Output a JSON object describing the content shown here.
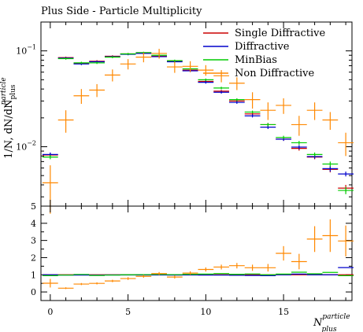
{
  "chart_data": [
    {
      "type": "scatter",
      "panel": "main",
      "title": "Plus Side - Particle Multiplicity",
      "ylabel": "1/N, dN/dN",
      "ylabel_sup": "particle",
      "ylabel_sub": "plus",
      "yscale": "log",
      "ylim": [
        0.0024,
        0.2
      ],
      "xlim": [
        -0.6,
        19.4
      ],
      "yticks": [
        {
          "value": 0.1,
          "base": "10",
          "exp": "−1"
        },
        {
          "value": 0.01,
          "base": "10",
          "exp": "−2"
        }
      ],
      "legend_position": "top-right",
      "series": [
        {
          "name": "Single Diffractive",
          "color": "#cc0000",
          "x": [
            0,
            1,
            2,
            3,
            4,
            5,
            6,
            7,
            8,
            9,
            10,
            11,
            12,
            13,
            14,
            15,
            16,
            17,
            18,
            19
          ],
          "y": [
            0.0082,
            0.085,
            0.074,
            0.078,
            0.088,
            0.093,
            0.095,
            0.088,
            0.078,
            0.063,
            0.048,
            0.038,
            0.03,
            0.022,
            0.017,
            0.012,
            0.0096,
            0.0078,
            0.0058,
            0.0037
          ],
          "err": [
            0.0004,
            0.002,
            0.002,
            0.002,
            0.002,
            0.002,
            0.002,
            0.002,
            0.002,
            0.002,
            0.0015,
            0.0012,
            0.001,
            0.0008,
            0.0007,
            0.0005,
            0.0005,
            0.0004,
            0.0004,
            0.0003
          ]
        },
        {
          "name": "Diffractive",
          "color": "#0000cc",
          "x": [
            0,
            1,
            2,
            3,
            4,
            5,
            6,
            7,
            8,
            9,
            10,
            11,
            12,
            13,
            14,
            15,
            16,
            17,
            18,
            19
          ],
          "y": [
            0.0083,
            0.084,
            0.073,
            0.077,
            0.087,
            0.092,
            0.094,
            0.087,
            0.077,
            0.062,
            0.047,
            0.037,
            0.029,
            0.021,
            0.016,
            0.012,
            0.0099,
            0.0079,
            0.0059,
            0.0052
          ],
          "err": [
            0.0004,
            0.002,
            0.002,
            0.002,
            0.002,
            0.002,
            0.002,
            0.002,
            0.002,
            0.002,
            0.0015,
            0.0012,
            0.001,
            0.0008,
            0.0007,
            0.0005,
            0.0005,
            0.0004,
            0.0004,
            0.0003
          ]
        },
        {
          "name": "MinBias",
          "color": "#00cc00",
          "x": [
            0,
            1,
            2,
            3,
            4,
            5,
            6,
            7,
            8,
            9,
            10,
            11,
            12,
            13,
            14,
            15,
            16,
            17,
            18,
            19
          ],
          "y": [
            0.0078,
            0.083,
            0.075,
            0.075,
            0.086,
            0.093,
            0.096,
            0.09,
            0.079,
            0.065,
            0.05,
            0.041,
            0.031,
            0.023,
            0.017,
            0.0125,
            0.011,
            0.0083,
            0.0066,
            0.0035
          ],
          "err": [
            0.0004,
            0.002,
            0.002,
            0.002,
            0.002,
            0.002,
            0.002,
            0.002,
            0.002,
            0.002,
            0.0015,
            0.0012,
            0.001,
            0.0008,
            0.0007,
            0.0005,
            0.0005,
            0.0004,
            0.0004,
            0.0003
          ]
        },
        {
          "name": "Non Diffractive",
          "color": "#ff8800",
          "x": [
            0,
            1,
            2,
            3,
            4,
            5,
            6,
            7,
            8,
            9,
            10,
            11,
            12,
            13,
            14,
            15,
            16,
            17,
            18,
            19
          ],
          "y": [
            0.0042,
            0.019,
            0.034,
            0.039,
            0.056,
            0.073,
            0.086,
            0.094,
            0.068,
            0.069,
            0.063,
            0.055,
            0.046,
            0.031,
            0.024,
            0.027,
            0.017,
            0.024,
            0.019,
            0.011
          ],
          "err": [
            0.0022,
            0.005,
            0.006,
            0.006,
            0.008,
            0.009,
            0.01,
            0.011,
            0.009,
            0.009,
            0.008,
            0.008,
            0.007,
            0.006,
            0.005,
            0.005,
            0.004,
            0.005,
            0.004,
            0.003
          ]
        }
      ]
    },
    {
      "type": "scatter",
      "panel": "ratio",
      "ylim": [
        -0.5,
        5
      ],
      "xlim": [
        -0.6,
        19.4
      ],
      "xlabel": "N",
      "xlabel_sup": "particle",
      "xlabel_sub": "plus",
      "xticks": [
        {
          "value": 0,
          "label": "0"
        },
        {
          "value": 5,
          "label": "5"
        },
        {
          "value": 10,
          "label": "10"
        },
        {
          "value": 15,
          "label": "15"
        }
      ],
      "yticks": [
        {
          "value": 0,
          "label": "0"
        },
        {
          "value": 1,
          "label": "1"
        },
        {
          "value": 2,
          "label": "2"
        },
        {
          "value": 3,
          "label": "3"
        },
        {
          "value": 4,
          "label": "4"
        },
        {
          "value": 5,
          "label": "5"
        }
      ],
      "series": [
        {
          "name": "Single Diffractive",
          "color": "#cc0000",
          "x": [
            0,
            1,
            2,
            3,
            4,
            5,
            6,
            7,
            8,
            9,
            10,
            11,
            12,
            13,
            14,
            15,
            16,
            17,
            18,
            19
          ],
          "y": [
            1.0,
            1.0,
            1.0,
            1.0,
            1.0,
            1.0,
            1.0,
            1.0,
            1.0,
            1.0,
            1.0,
            1.0,
            1.0,
            1.0,
            1.0,
            1.0,
            1.0,
            1.0,
            1.0,
            1.0
          ]
        },
        {
          "name": "Diffractive",
          "color": "#0000cc",
          "x": [
            0,
            1,
            2,
            3,
            4,
            5,
            6,
            7,
            8,
            9,
            10,
            11,
            12,
            13,
            14,
            15,
            16,
            17,
            18,
            19
          ],
          "y": [
            1.0,
            0.98,
            0.98,
            0.98,
            0.99,
            0.99,
            0.99,
            0.99,
            0.98,
            0.99,
            0.98,
            0.98,
            0.97,
            0.96,
            0.95,
            1.0,
            1.04,
            1.0,
            1.0,
            1.42
          ]
        },
        {
          "name": "MinBias",
          "color": "#00cc00",
          "x": [
            0,
            1,
            2,
            3,
            4,
            5,
            6,
            7,
            8,
            9,
            10,
            11,
            12,
            13,
            14,
            15,
            16,
            17,
            18,
            19
          ],
          "y": [
            0.95,
            0.98,
            1.02,
            0.96,
            0.98,
            1.0,
            1.01,
            1.02,
            1.01,
            1.03,
            1.04,
            1.07,
            1.03,
            1.05,
            1.0,
            1.04,
            1.15,
            1.06,
            1.14,
            0.95
          ]
        },
        {
          "name": "Non Diffractive",
          "color": "#ff8800",
          "x": [
            0,
            1,
            2,
            3,
            4,
            5,
            6,
            7,
            8,
            9,
            10,
            11,
            12,
            13,
            14,
            15,
            16,
            17,
            18,
            19
          ],
          "y": [
            0.51,
            0.22,
            0.46,
            0.5,
            0.64,
            0.78,
            0.91,
            1.07,
            0.87,
            1.1,
            1.31,
            1.45,
            1.53,
            1.41,
            1.41,
            2.25,
            1.77,
            3.08,
            3.28,
            2.97
          ],
          "err": [
            0.25,
            0.05,
            0.06,
            0.06,
            0.07,
            0.08,
            0.08,
            0.09,
            0.09,
            0.1,
            0.12,
            0.14,
            0.16,
            0.18,
            0.22,
            0.42,
            0.45,
            0.75,
            0.95,
            0.9
          ]
        }
      ]
    }
  ]
}
